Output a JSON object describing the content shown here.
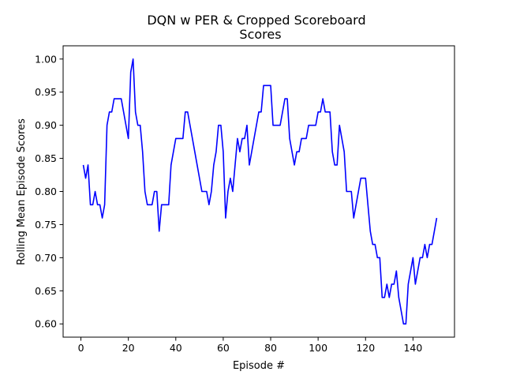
{
  "chart_data": {
    "type": "line",
    "title_line1": "DQN w PER & Cropped Scoreboard",
    "title_line2": "Scores",
    "xlabel": "Episode #",
    "ylabel": "Rolling Mean Episode Scores",
    "xlim": [
      -7.5,
      157.5
    ],
    "ylim": [
      0.58,
      1.02
    ],
    "xticks": [
      0,
      20,
      40,
      60,
      80,
      100,
      120,
      140
    ],
    "yticks": [
      0.6,
      0.65,
      0.7,
      0.75,
      0.8,
      0.85,
      0.9,
      0.95,
      1.0
    ],
    "xtick_labels": [
      "0",
      "20",
      "40",
      "60",
      "80",
      "100",
      "120",
      "140"
    ],
    "ytick_labels": [
      "0.60",
      "0.65",
      "0.70",
      "0.75",
      "0.80",
      "0.85",
      "0.90",
      "0.95",
      "1.00"
    ],
    "grid": false,
    "colors": {
      "line": "#0000ff",
      "axes": "#000000",
      "background": "#ffffff"
    },
    "series": [
      {
        "x": [
          1,
          2,
          3,
          4,
          5,
          6,
          7,
          8,
          9,
          10,
          11,
          12,
          13,
          14,
          15,
          16,
          17,
          18,
          19,
          20,
          21,
          22,
          23,
          24,
          25,
          26,
          27,
          28,
          29,
          30,
          31,
          32,
          33,
          34,
          35,
          36,
          37,
          38,
          39,
          40,
          41,
          42,
          43,
          44,
          45,
          46,
          47,
          48,
          49,
          50,
          51,
          52,
          53,
          54,
          55,
          56,
          57,
          58,
          59,
          60,
          61,
          62,
          63,
          64,
          65,
          66,
          67,
          68,
          69,
          70,
          71,
          72,
          73,
          74,
          75,
          76,
          77,
          78,
          79,
          80,
          81,
          82,
          83,
          84,
          85,
          86,
          87,
          88,
          89,
          90,
          91,
          92,
          93,
          94,
          95,
          96,
          97,
          98,
          99,
          100,
          101,
          102,
          103,
          104,
          105,
          106,
          107,
          108,
          109,
          110,
          111,
          112,
          113,
          114,
          115,
          116,
          117,
          118,
          119,
          120,
          121,
          122,
          123,
          124,
          125,
          126,
          127,
          128,
          129,
          130,
          131,
          132,
          133,
          134,
          135,
          136,
          137,
          138,
          139,
          140,
          141,
          142,
          143,
          144,
          145,
          146,
          147,
          148,
          149,
          150
        ],
        "y": [
          0.84,
          0.82,
          0.84,
          0.78,
          0.78,
          0.8,
          0.78,
          0.78,
          0.76,
          0.78,
          0.9,
          0.92,
          0.92,
          0.94,
          0.94,
          0.94,
          0.94,
          0.92,
          0.9,
          0.88,
          0.98,
          1.0,
          0.92,
          0.9,
          0.9,
          0.86,
          0.8,
          0.78,
          0.78,
          0.78,
          0.8,
          0.8,
          0.74,
          0.78,
          0.78,
          0.78,
          0.78,
          0.84,
          0.86,
          0.88,
          0.88,
          0.88,
          0.88,
          0.92,
          0.92,
          0.9,
          0.88,
          0.86,
          0.84,
          0.82,
          0.8,
          0.8,
          0.8,
          0.78,
          0.8,
          0.84,
          0.86,
          0.9,
          0.9,
          0.86,
          0.76,
          0.8,
          0.82,
          0.8,
          0.84,
          0.88,
          0.86,
          0.88,
          0.88,
          0.9,
          0.84,
          0.86,
          0.88,
          0.9,
          0.92,
          0.92,
          0.96,
          0.96,
          0.96,
          0.96,
          0.9,
          0.9,
          0.9,
          0.9,
          0.92,
          0.94,
          0.94,
          0.88,
          0.86,
          0.84,
          0.86,
          0.86,
          0.88,
          0.88,
          0.88,
          0.9,
          0.9,
          0.9,
          0.9,
          0.92,
          0.92,
          0.94,
          0.92,
          0.92,
          0.92,
          0.86,
          0.84,
          0.84,
          0.9,
          0.88,
          0.86,
          0.8,
          0.8,
          0.8,
          0.76,
          0.78,
          0.8,
          0.82,
          0.82,
          0.82,
          0.78,
          0.74,
          0.72,
          0.72,
          0.7,
          0.7,
          0.64,
          0.64,
          0.66,
          0.64,
          0.66,
          0.66,
          0.68,
          0.64,
          0.62,
          0.6,
          0.6,
          0.66,
          0.68,
          0.7,
          0.66,
          0.68,
          0.7,
          0.7,
          0.72,
          0.7,
          0.72,
          0.72,
          0.74,
          0.76
        ]
      }
    ]
  }
}
